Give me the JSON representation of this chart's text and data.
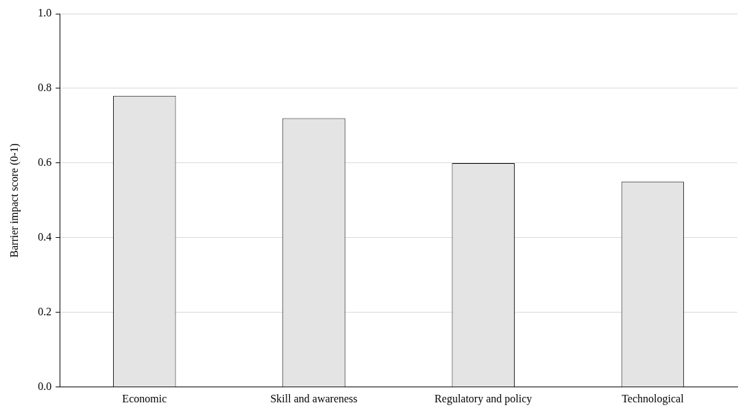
{
  "chart_data": {
    "type": "bar",
    "ylabel": "Barrier impact score (0-1)",
    "categories": [
      "Economic",
      "Skill and awareness",
      "Regulatory and policy",
      "Technological"
    ],
    "values": [
      0.78,
      0.72,
      0.6,
      0.55
    ],
    "color": "#e4e4e4",
    "ylim": [
      0,
      1
    ],
    "yticks": [
      {
        "value": 0,
        "label": "0.0"
      },
      {
        "value": 0.2,
        "label": "0.2"
      },
      {
        "value": 0.4,
        "label": "0.4"
      },
      {
        "value": 0.6,
        "label": "0.6"
      },
      {
        "value": 0.8,
        "label": "0.8"
      },
      {
        "value": 1,
        "label": "1.0"
      }
    ],
    "grid": "y",
    "legend": false
  }
}
